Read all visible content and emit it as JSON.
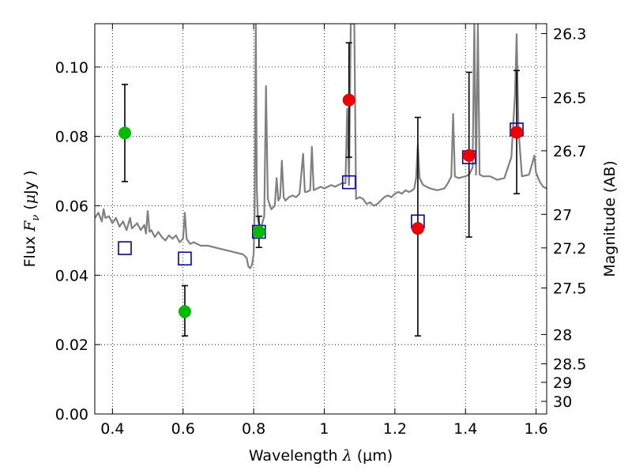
{
  "chart_data": {
    "type": "scatter",
    "title": "",
    "xlabel": "Wavelength  λ (μm)",
    "ylabel": "Flux  F_ν  ( μJy )",
    "xlabel_parts": {
      "main": "Wavelength  ",
      "lambda": "λ",
      "unit": " (μm)"
    },
    "ylabel_parts": {
      "main": "Flux  ",
      "F": "F",
      "nu": "ν",
      "paren_open": "  (",
      "mu": "μ",
      "unit": "Jy )"
    },
    "ylabel_right": "Magnitude (AB)",
    "xlim": [
      0.35,
      1.63
    ],
    "ylim": [
      0.0,
      0.1125
    ],
    "grid": true,
    "x_ticks": [
      {
        "value": 0.4,
        "label": "0.4"
      },
      {
        "value": 0.6,
        "label": "0.6"
      },
      {
        "value": 0.8,
        "label": "0.8"
      },
      {
        "value": 1.0,
        "label": "1"
      },
      {
        "value": 1.2,
        "label": "1.2"
      },
      {
        "value": 1.4,
        "label": "1.4"
      },
      {
        "value": 1.6,
        "label": "1.6"
      }
    ],
    "y_ticks": [
      {
        "value": 0.0,
        "label": "0.00"
      },
      {
        "value": 0.02,
        "label": "0.02"
      },
      {
        "value": 0.04,
        "label": "0.04"
      },
      {
        "value": 0.06,
        "label": "0.06"
      },
      {
        "value": 0.08,
        "label": "0.08"
      },
      {
        "value": 0.1,
        "label": "0.10"
      }
    ],
    "right_ticks": [
      {
        "mag": 26.3,
        "label": "26.3"
      },
      {
        "mag": 26.5,
        "label": "26.5"
      },
      {
        "mag": 26.7,
        "label": "26.7"
      },
      {
        "mag": 27.0,
        "label": "27"
      },
      {
        "mag": 27.2,
        "label": "27.2"
      },
      {
        "mag": 27.5,
        "label": "27.5"
      },
      {
        "mag": 28.0,
        "label": "28"
      },
      {
        "mag": 28.5,
        "label": "28.5"
      },
      {
        "mag": 29.0,
        "label": "29"
      },
      {
        "mag": 30.0,
        "label": "30"
      }
    ],
    "series": [
      {
        "kind": "line",
        "color": "#808080",
        "points": [
          [
            0.35,
            0.0565
          ],
          [
            0.36,
            0.058
          ],
          [
            0.37,
            0.0555
          ],
          [
            0.375,
            0.059
          ],
          [
            0.38,
            0.0565
          ],
          [
            0.39,
            0.057
          ],
          [
            0.4,
            0.055
          ],
          [
            0.41,
            0.0565
          ],
          [
            0.42,
            0.054
          ],
          [
            0.43,
            0.0555
          ],
          [
            0.44,
            0.053
          ],
          [
            0.45,
            0.0565
          ],
          [
            0.455,
            0.0535
          ],
          [
            0.46,
            0.054
          ],
          [
            0.47,
            0.055
          ],
          [
            0.48,
            0.053
          ],
          [
            0.49,
            0.0545
          ],
          [
            0.495,
            0.052
          ],
          [
            0.5,
            0.0585
          ],
          [
            0.505,
            0.0525
          ],
          [
            0.51,
            0.053
          ],
          [
            0.52,
            0.051
          ],
          [
            0.53,
            0.0525
          ],
          [
            0.54,
            0.051
          ],
          [
            0.55,
            0.05
          ],
          [
            0.56,
            0.0515
          ],
          [
            0.57,
            0.0505
          ],
          [
            0.58,
            0.0515
          ],
          [
            0.59,
            0.0495
          ],
          [
            0.6,
            0.0505
          ],
          [
            0.605,
            0.058
          ],
          [
            0.61,
            0.0505
          ],
          [
            0.62,
            0.049
          ],
          [
            0.63,
            0.0495
          ],
          [
            0.65,
            0.0485
          ],
          [
            0.67,
            0.0485
          ],
          [
            0.69,
            0.048
          ],
          [
            0.71,
            0.0475
          ],
          [
            0.73,
            0.047
          ],
          [
            0.75,
            0.0465
          ],
          [
            0.77,
            0.046
          ],
          [
            0.78,
            0.045
          ],
          [
            0.785,
            0.0425
          ],
          [
            0.79,
            0.042
          ],
          [
            0.795,
            0.043
          ],
          [
            0.8,
            0.046
          ],
          [
            0.803,
            0.06
          ],
          [
            0.806,
            0.1125
          ],
          [
            0.809,
            0.065
          ],
          [
            0.812,
            0.056
          ],
          [
            0.82,
            0.0535
          ],
          [
            0.83,
            0.057
          ],
          [
            0.835,
            0.0945
          ],
          [
            0.84,
            0.062
          ],
          [
            0.85,
            0.059
          ],
          [
            0.86,
            0.06
          ],
          [
            0.865,
            0.068
          ],
          [
            0.87,
            0.0615
          ],
          [
            0.875,
            0.0625
          ],
          [
            0.88,
            0.073
          ],
          [
            0.885,
            0.0625
          ],
          [
            0.89,
            0.0615
          ],
          [
            0.9,
            0.0625
          ],
          [
            0.91,
            0.063
          ],
          [
            0.92,
            0.0625
          ],
          [
            0.93,
            0.0635
          ],
          [
            0.94,
            0.075
          ],
          [
            0.945,
            0.064
          ],
          [
            0.95,
            0.064
          ],
          [
            0.96,
            0.0645
          ],
          [
            0.965,
            0.077
          ],
          [
            0.97,
            0.0645
          ],
          [
            0.98,
            0.065
          ],
          [
            0.99,
            0.0655
          ],
          [
            1.0,
            0.065
          ],
          [
            1.01,
            0.0655
          ],
          [
            1.02,
            0.066
          ],
          [
            1.03,
            0.0655
          ],
          [
            1.04,
            0.066
          ],
          [
            1.05,
            0.0665
          ],
          [
            1.06,
            0.0665
          ],
          [
            1.065,
            0.088
          ],
          [
            1.07,
            0.066
          ],
          [
            1.075,
            0.1125
          ],
          [
            1.085,
            0.1125
          ],
          [
            1.09,
            0.062
          ],
          [
            1.1,
            0.0625
          ],
          [
            1.11,
            0.062
          ],
          [
            1.12,
            0.0605
          ],
          [
            1.13,
            0.061
          ],
          [
            1.14,
            0.06
          ],
          [
            1.15,
            0.0605
          ],
          [
            1.16,
            0.0615
          ],
          [
            1.17,
            0.0625
          ],
          [
            1.18,
            0.063
          ],
          [
            1.19,
            0.0625
          ],
          [
            1.2,
            0.0635
          ],
          [
            1.21,
            0.064
          ],
          [
            1.22,
            0.0635
          ],
          [
            1.23,
            0.0645
          ],
          [
            1.24,
            0.064
          ],
          [
            1.25,
            0.0645
          ],
          [
            1.255,
            0.065
          ],
          [
            1.26,
            0.068
          ],
          [
            1.265,
            0.0775
          ],
          [
            1.27,
            0.068
          ],
          [
            1.28,
            0.066
          ],
          [
            1.3,
            0.065
          ],
          [
            1.32,
            0.0645
          ],
          [
            1.34,
            0.065
          ],
          [
            1.35,
            0.0665
          ],
          [
            1.36,
            0.0685
          ],
          [
            1.365,
            0.0865
          ],
          [
            1.37,
            0.0685
          ],
          [
            1.38,
            0.068
          ],
          [
            1.4,
            0.0685
          ],
          [
            1.41,
            0.069
          ],
          [
            1.42,
            0.071
          ],
          [
            1.425,
            0.1125
          ],
          [
            1.43,
            0.069
          ],
          [
            1.435,
            0.1125
          ],
          [
            1.44,
            0.069
          ],
          [
            1.45,
            0.0685
          ],
          [
            1.47,
            0.0685
          ],
          [
            1.49,
            0.0675
          ],
          [
            1.51,
            0.068
          ],
          [
            1.53,
            0.074
          ],
          [
            1.535,
            0.083
          ],
          [
            1.54,
            0.0915
          ],
          [
            1.545,
            0.1095
          ],
          [
            1.55,
            0.082
          ],
          [
            1.56,
            0.0685
          ],
          [
            1.58,
            0.069
          ],
          [
            1.59,
            0.0725
          ],
          [
            1.595,
            0.0745
          ],
          [
            1.6,
            0.0695
          ],
          [
            1.61,
            0.067
          ],
          [
            1.62,
            0.0655
          ],
          [
            1.63,
            0.065
          ]
        ]
      },
      {
        "kind": "squares",
        "color": "#0000cc",
        "points": [
          [
            0.435,
            0.0478
          ],
          [
            0.605,
            0.0448
          ],
          [
            0.815,
            0.0525
          ],
          [
            1.07,
            0.0668
          ],
          [
            1.265,
            0.0555
          ],
          [
            1.41,
            0.074
          ],
          [
            1.545,
            0.082
          ]
        ]
      },
      {
        "kind": "points",
        "color": "#00bb00",
        "points": [
          {
            "x": 0.435,
            "y": 0.081,
            "err": [
              0.067,
              0.095
            ]
          },
          {
            "x": 0.605,
            "y": 0.0295,
            "err": [
              0.0225,
              0.037
            ]
          },
          {
            "x": 0.815,
            "y": 0.0525,
            "err": [
              0.048,
              0.057
            ]
          }
        ]
      },
      {
        "kind": "points",
        "color": "#ee0000",
        "points": [
          {
            "x": 1.07,
            "y": 0.0905,
            "err": [
              0.074,
              0.107
            ]
          },
          {
            "x": 1.265,
            "y": 0.0535,
            "err": [
              0.0225,
              0.0855
            ]
          },
          {
            "x": 1.41,
            "y": 0.0745,
            "err": [
              0.051,
              0.0985
            ]
          },
          {
            "x": 1.545,
            "y": 0.0812,
            "err": [
              0.0635,
              0.099
            ]
          }
        ]
      }
    ]
  }
}
